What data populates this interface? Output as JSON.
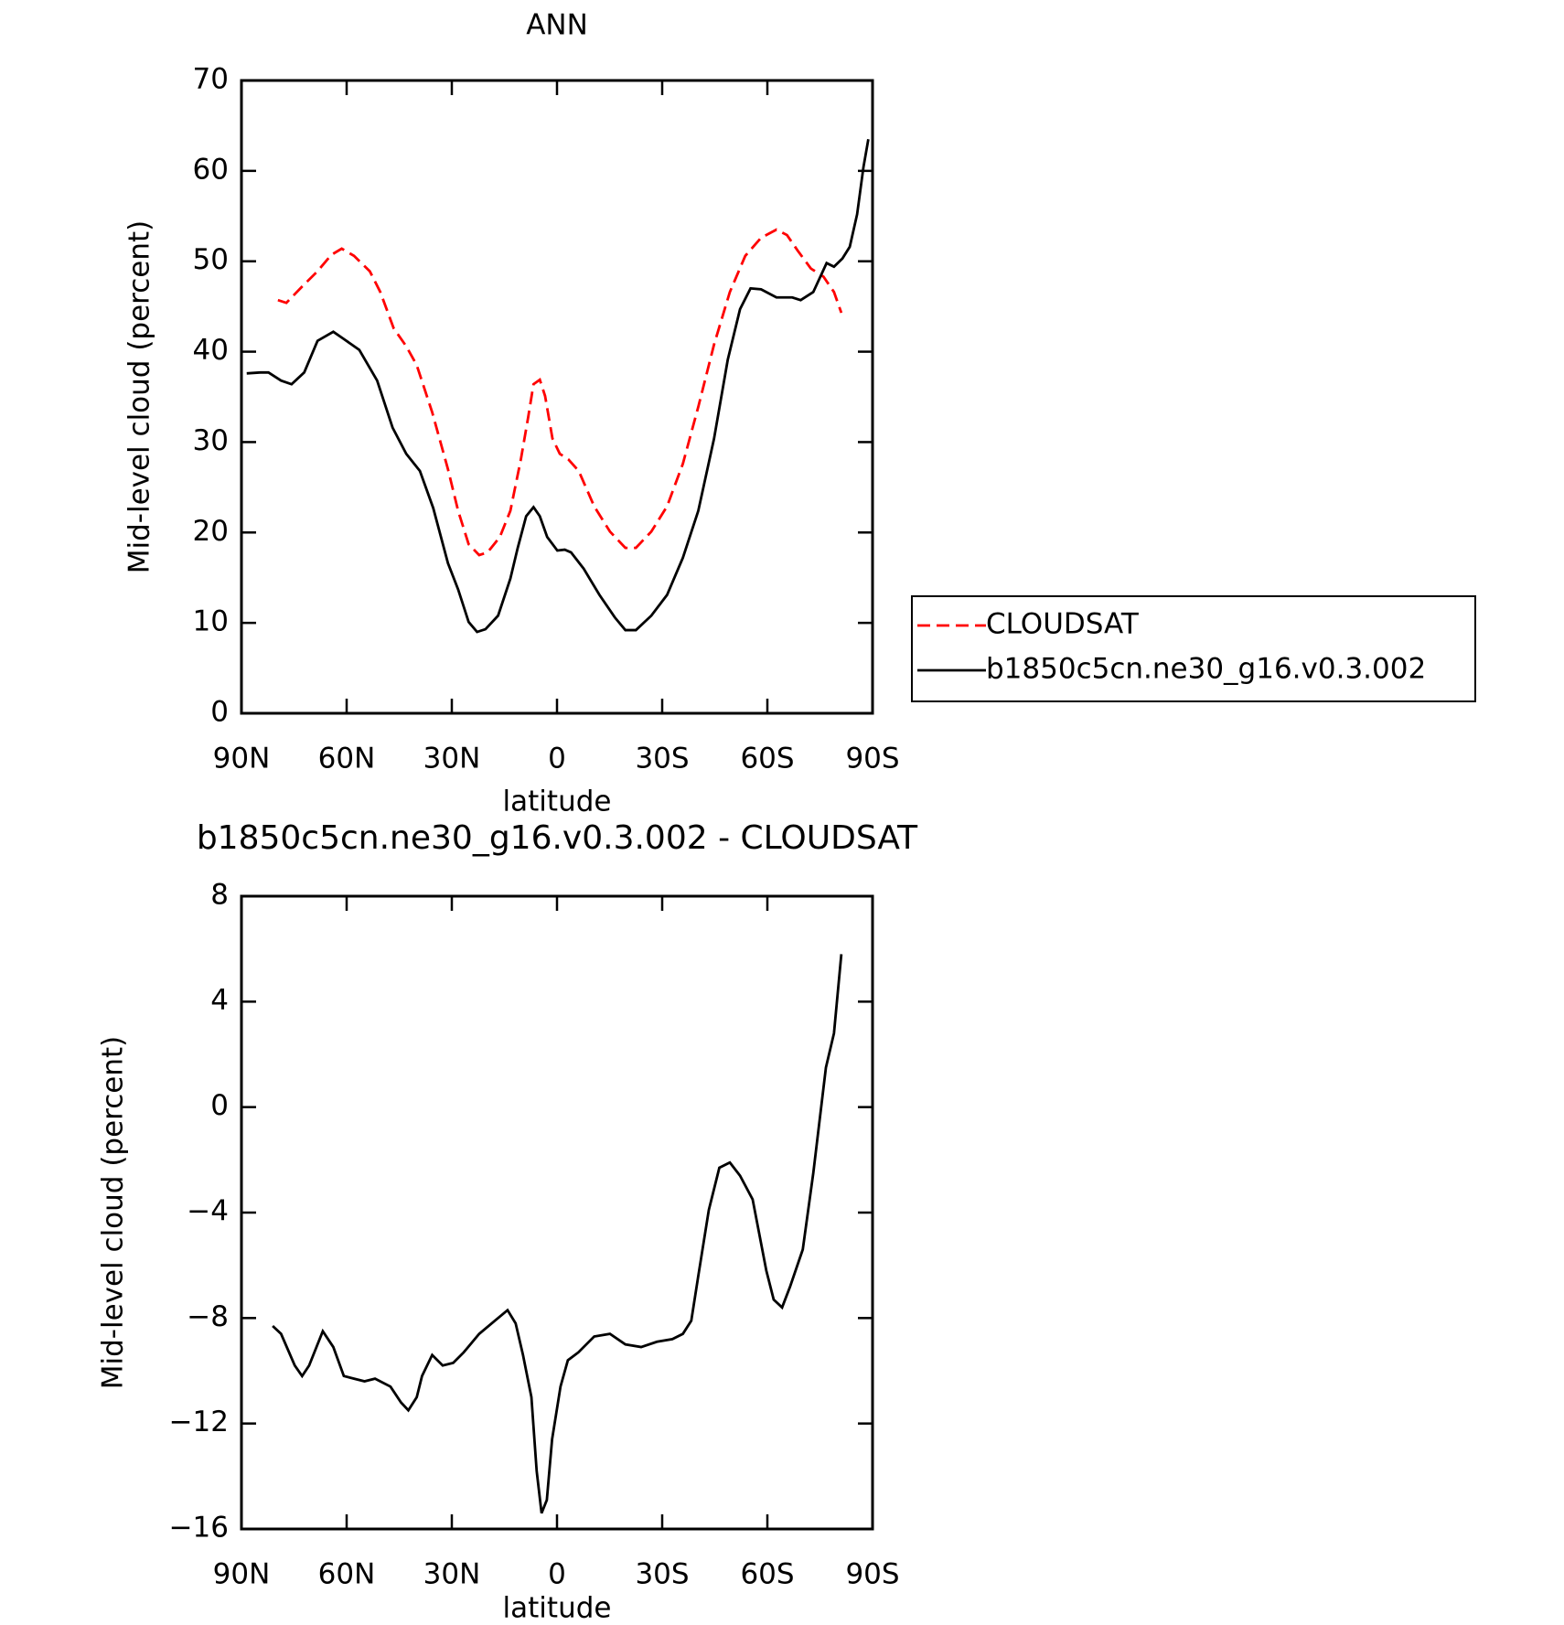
{
  "chart_data": [
    {
      "type": "line",
      "title": "ANN",
      "xlabel": "latitude",
      "ylabel": "Mid-level cloud (percent)",
      "xlim": [
        90,
        -90
      ],
      "xticks": [
        {
          "value": 90,
          "label": "90N"
        },
        {
          "value": 60,
          "label": "60N"
        },
        {
          "value": 30,
          "label": "30N"
        },
        0,
        {
          "value": -30,
          "label": "30S"
        },
        {
          "value": -60,
          "label": "60S"
        },
        {
          "value": -90,
          "label": "90S"
        }
      ],
      "ylim": [
        0,
        70
      ],
      "yticks": [
        0,
        10,
        20,
        30,
        40,
        50,
        60,
        70
      ],
      "legend": "right",
      "series": [
        {
          "name": "CLOUDSAT",
          "color": "#ff0000",
          "dash": true,
          "x": [
            79.6,
            77.2,
            72.7,
            68.3,
            64.4,
            61.4,
            57.9,
            53.4,
            50.4,
            46.6,
            43.0,
            40.0,
            35.6,
            31.1,
            28.2,
            25.2,
            22.2,
            19.8,
            16.3,
            13.3,
            10.3,
            8.2,
            6.7,
            4.9,
            3.4,
            1.3,
            -0.8,
            -3.2,
            -6.2,
            -10.6,
            -15.1,
            -19.5,
            -22.5,
            -26.9,
            -31.4,
            -35.9,
            -40.3,
            -44.8,
            -49.3,
            -53.7,
            -58.2,
            -62.6,
            -65.6,
            -68.6,
            -72.4,
            -76.0,
            -79.0,
            -81.1
          ],
          "values": [
            45.7,
            45.4,
            47.2,
            48.9,
            50.7,
            51.4,
            50.6,
            48.9,
            46.6,
            42.6,
            40.6,
            38.5,
            33.3,
            27.0,
            22.4,
            18.7,
            17.5,
            17.8,
            19.5,
            22.4,
            28.1,
            32.8,
            36.4,
            36.9,
            35.1,
            30.4,
            28.7,
            28.1,
            26.8,
            22.9,
            20.1,
            18.3,
            18.3,
            20.1,
            22.9,
            27.6,
            33.9,
            40.8,
            46.6,
            50.6,
            52.6,
            53.5,
            52.9,
            51.2,
            49.2,
            48.3,
            46.6,
            44.3
          ]
        },
        {
          "name": "b1850c5cn.ne30_g16.v0.3.002",
          "color": "#000000",
          "dash": false,
          "x": [
            88.5,
            84.6,
            82.3,
            78.7,
            75.7,
            72.1,
            68.3,
            63.8,
            60.8,
            56.4,
            51.3,
            46.9,
            43.0,
            39.1,
            35.3,
            31.1,
            28.2,
            25.2,
            22.8,
            20.4,
            16.8,
            13.3,
            11.2,
            8.8,
            6.7,
            4.9,
            2.8,
            -0.1,
            -2.2,
            -4.0,
            -7.6,
            -12.1,
            -16.5,
            -19.5,
            -22.5,
            -26.9,
            -31.4,
            -35.9,
            -40.3,
            -44.8,
            -48.7,
            -52.2,
            -55.2,
            -58.2,
            -62.6,
            -67.1,
            -69.5,
            -73.1,
            -76.9,
            -79.0,
            -81.4,
            -83.5,
            -85.6,
            -87.4,
            -88.8
          ],
          "values": [
            37.6,
            37.7,
            37.7,
            36.8,
            36.4,
            37.7,
            41.2,
            42.2,
            41.4,
            40.2,
            36.8,
            31.6,
            28.7,
            26.8,
            22.7,
            16.6,
            13.7,
            10.1,
            9.0,
            9.3,
            10.8,
            14.9,
            18.3,
            21.8,
            22.8,
            21.8,
            19.5,
            18.0,
            18.1,
            17.8,
            16.0,
            13.1,
            10.6,
            9.2,
            9.2,
            10.8,
            13.1,
            17.2,
            22.4,
            30.4,
            39.1,
            44.7,
            47.0,
            46.9,
            46.0,
            46.0,
            45.7,
            46.6,
            49.8,
            49.4,
            50.3,
            51.6,
            55.2,
            60.4,
            63.5
          ]
        }
      ]
    },
    {
      "type": "line",
      "title": "b1850c5cn.ne30_g16.v0.3.002 - CLOUDSAT",
      "xlabel": "latitude",
      "ylabel": "Mid-level cloud (percent)",
      "xlim": [
        90,
        -90
      ],
      "xticks": [
        {
          "value": 90,
          "label": "90N"
        },
        {
          "value": 60,
          "label": "60N"
        },
        {
          "value": 30,
          "label": "30N"
        },
        0,
        {
          "value": -30,
          "label": "30S"
        },
        {
          "value": -60,
          "label": "60S"
        },
        {
          "value": -90,
          "label": "90S"
        }
      ],
      "ylim": [
        -16,
        8
      ],
      "yticks": [
        {
          "value": -16,
          "label": "−16"
        },
        {
          "value": -12,
          "label": "−12"
        },
        {
          "value": -8,
          "label": "−8"
        },
        {
          "value": -4,
          "label": "−4"
        },
        0,
        4,
        8
      ],
      "series": [
        {
          "color": "#000000",
          "dash": false,
          "x": [
            81.1,
            78.7,
            74.8,
            72.7,
            70.7,
            68.3,
            66.8,
            63.8,
            60.8,
            57.9,
            54.9,
            51.9,
            47.5,
            44.5,
            42.4,
            40.0,
            38.5,
            35.6,
            32.6,
            29.6,
            26.6,
            22.2,
            17.7,
            14.1,
            11.8,
            9.7,
            7.3,
            5.8,
            4.4,
            2.9,
            1.4,
            -1.0,
            -3.1,
            -6.1,
            -10.6,
            -15.1,
            -19.5,
            -24.0,
            -28.5,
            -32.9,
            -35.9,
            -38.3,
            -40.3,
            -43.3,
            -46.3,
            -49.3,
            -52.2,
            -55.8,
            -59.7,
            -61.8,
            -64.2,
            -66.5,
            -70.1,
            -73.1,
            -76.7,
            -79.0,
            -81.1
          ],
          "values": [
            -8.3,
            -8.6,
            -9.8,
            -10.2,
            -9.8,
            -9.0,
            -8.5,
            -9.1,
            -10.2,
            -10.3,
            -10.4,
            -10.3,
            -10.6,
            -11.2,
            -11.5,
            -11.0,
            -10.2,
            -9.4,
            -9.8,
            -9.7,
            -9.3,
            -8.6,
            -8.1,
            -7.7,
            -8.2,
            -9.4,
            -11.0,
            -13.8,
            -15.4,
            -14.9,
            -12.6,
            -10.6,
            -9.6,
            -9.3,
            -8.7,
            -8.6,
            -9.0,
            -9.1,
            -8.9,
            -8.8,
            -8.6,
            -8.1,
            -6.4,
            -3.9,
            -2.3,
            -2.1,
            -2.6,
            -3.5,
            -6.2,
            -7.3,
            -7.6,
            -6.8,
            -5.4,
            -2.5,
            1.5,
            2.8,
            5.8
          ]
        }
      ]
    }
  ]
}
